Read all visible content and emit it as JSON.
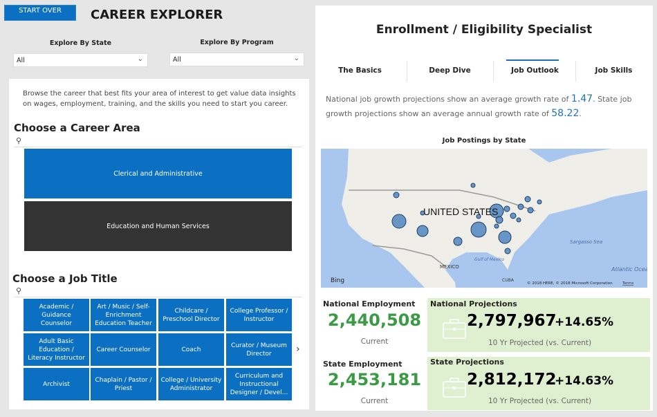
{
  "header": {
    "start_over": "START OVER",
    "title": "CAREER EXPLORER"
  },
  "filters": {
    "state_label": "Explore By State",
    "state_value": "All",
    "program_label": "Explore By Program",
    "program_value": "All"
  },
  "intro": "Browse the career that best fits your area of interest to get value data insights on wages, employment, training, and the skills you need to start you career.",
  "career_area": {
    "heading": "Choose a Career Area",
    "items": [
      {
        "label": "Clerical and Administrative",
        "color": "#0b6fc2"
      },
      {
        "label": "Education and Human Services",
        "color": "#333333"
      }
    ]
  },
  "job_title": {
    "heading": "Choose a Job Title",
    "items": [
      "Academic / Guidance Counselor",
      "Art / Music / Self-Enrichment Education Teacher",
      "Childcare / Preschool Director",
      "College Professor / Instructor",
      "Adult Basic Education / Literacy Instructor",
      "Career Counselor",
      "Coach",
      "Curator / Museum Director",
      "Archivist",
      "Chaplain / Pastor / Priest",
      "College / University Administrator",
      "Curriculum and Instructional Designer / Devel..."
    ]
  },
  "detail": {
    "title": "Enrollment / Eligibility Specialist",
    "tabs": [
      {
        "label": "The Basics"
      },
      {
        "label": "Deep Dive"
      },
      {
        "label": "Job Outlook",
        "active": true
      },
      {
        "label": "Job Skills"
      }
    ],
    "growth": {
      "t1": "National job growth projections show an average growth rate of ",
      "national_rate": "1.47",
      "t2": ". State job growth projections show an average annual growth rate of ",
      "state_rate": "58.22",
      "t3": "."
    },
    "map": {
      "title": "Job Postings by State",
      "country_label": "UNITED STATES",
      "labels": {
        "mexico": "MEXICO",
        "cuba": "CUBA",
        "gulf": "Gulf of Mexico",
        "sargasso": "Sargasso Sea",
        "atlantic": "Atlantic Ocean"
      },
      "provider": "Bing",
      "copyright": "© 2018 HERE, © 2018 Microsoft Corporation",
      "terms": "Terms"
    },
    "national_employment": {
      "label": "National Employment",
      "value": "2,440,508",
      "sub": "Current"
    },
    "state_employment": {
      "label": "State Employment",
      "value": "2,453,181",
      "sub": "Current"
    },
    "national_projections": {
      "label": "National Projections",
      "value": "2,797,967",
      "change": "+14.65%",
      "sub": "10 Yr Projected (vs. Current)"
    },
    "state_projections": {
      "label": "State Projections",
      "value": "2,812,172",
      "change": "+14.63%",
      "sub": "10 Yr Projected (vs. Current)"
    }
  },
  "colors": {
    "accent": "#0b6fc2",
    "green_value": "#3b9a44",
    "projection_bg": "#dff0d0",
    "rate_blue": "#1f73b7"
  }
}
